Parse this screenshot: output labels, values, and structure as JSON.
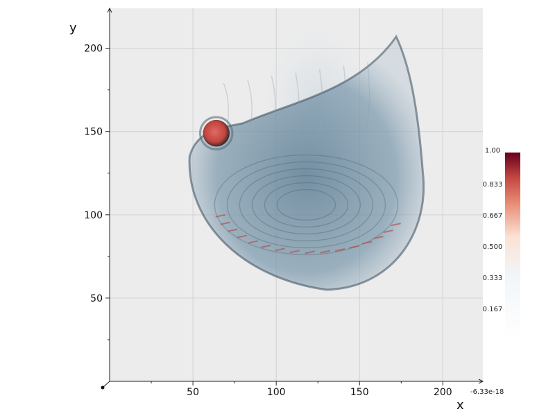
{
  "chart_data": {
    "type": "heatmap",
    "title": "",
    "subtitle": "",
    "xlabel": "x",
    "ylabel": "y",
    "xlim": [
      0,
      224
    ],
    "ylim": [
      0,
      224
    ],
    "x_ticks": [
      50,
      100,
      150,
      200
    ],
    "y_ticks": [
      50,
      100,
      150,
      200
    ],
    "x_tick_labels": [
      "50",
      "100",
      "150",
      "200"
    ],
    "y_tick_labels": [
      "50",
      "100",
      "150",
      "200"
    ],
    "grid": true,
    "plot_background": "#ececec",
    "colorbar": {
      "range": [
        -6.33e-18,
        1.0
      ],
      "ticks": [
        0.167,
        0.333,
        0.5,
        0.667,
        0.833,
        1.0
      ],
      "tick_labels": [
        "0.167",
        "0.333",
        "0.500",
        "0.667",
        "0.833",
        "1.00"
      ],
      "min_label": "-6.33e-18",
      "colorscale": [
        "#ffffff",
        "#f2f6fa",
        "#fbe2d5",
        "#e8917a",
        "#c64a42",
        "#67001f"
      ]
    },
    "volume": {
      "description": "volume render of a cross-sectional scan",
      "outline_color": "#3a4f5e",
      "body_color": "#6f8ea3",
      "highlight_color": "#b5443e",
      "body": {
        "x_range": [
          48,
          190
        ],
        "y_range": [
          55,
          215
        ]
      },
      "bright_spot": {
        "x": 64,
        "y": 149,
        "radius": 8,
        "value": 0.9
      }
    }
  }
}
